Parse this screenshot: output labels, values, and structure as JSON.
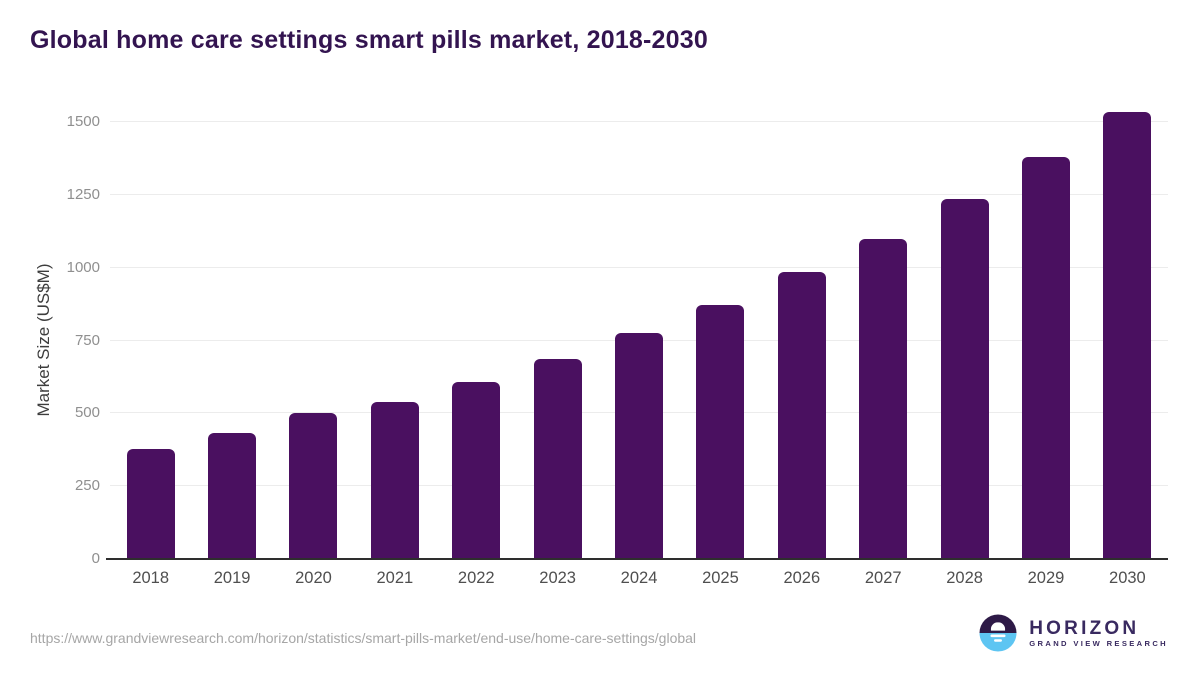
{
  "header": {
    "title": "Global home care settings smart pills market, 2018-2030"
  },
  "chart_data": {
    "type": "bar",
    "title": "Global home care settings smart pills market, 2018-2030",
    "categories": [
      "2018",
      "2019",
      "2020",
      "2021",
      "2022",
      "2023",
      "2024",
      "2025",
      "2026",
      "2027",
      "2028",
      "2029",
      "2030"
    ],
    "values": [
      378,
      433,
      500,
      538,
      607,
      686,
      776,
      873,
      985,
      1100,
      1236,
      1379,
      1535
    ],
    "xlabel": "",
    "ylabel": "Market Size (US$M)",
    "ylim": [
      0,
      1500
    ],
    "yticks": [
      0,
      250,
      500,
      750,
      1000,
      1250,
      1500
    ],
    "grid": true,
    "legend": "none",
    "bar_color": "#4a1060"
  },
  "colors": {
    "title": "#331450",
    "bar": "#4a1060",
    "gridline": "#ececec",
    "axis_line": "#2e2e2e",
    "y_tick": "#8f8f8f",
    "x_label": "#4f4f4f",
    "url_text": "#a6a6a6",
    "logo_purple": "#392a60",
    "logo_dark": "#2e1a47",
    "logo_blue": "#5ec5f2"
  },
  "footer": {
    "source_url": "https://www.grandviewresearch.com/horizon/statistics/smart-pills-market/end-use/home-care-settings/global",
    "logo_name": "HORIZON",
    "logo_subtitle": "GRAND VIEW RESEARCH"
  }
}
